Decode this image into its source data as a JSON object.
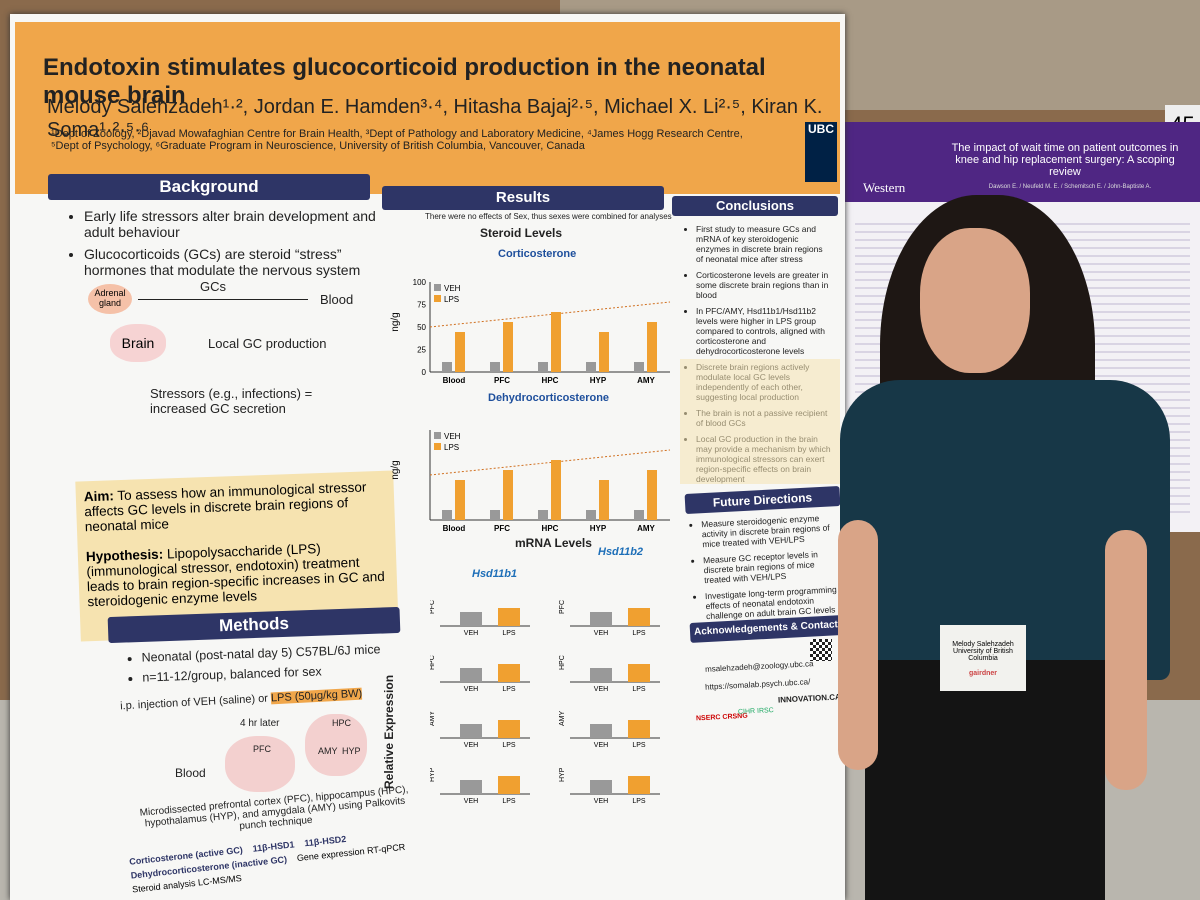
{
  "poster": {
    "header": {
      "title": "Endotoxin stimulates glucocorticoid production in the neonatal mouse brain",
      "authors": "Melody Salehzadeh¹·², Jordan E. Hamden³·⁴, Hitasha Bajaj²·⁵, Michael X. Li²·⁵, Kiran K. Soma¹·²·⁵·⁶",
      "affiliations": "¹Dept of Zoology, ²Djavad Mowafaghian Centre for Brain Health, ³Dept of Pathology and Laboratory Medicine, ⁴James Hogg Research Centre, ⁵Dept of Psychology, ⁶Graduate Program in Neuroscience, University of British Columbia, Vancouver, Canada",
      "logo": "UBC"
    },
    "background": {
      "heading": "Background",
      "items": [
        "Early life stressors alter brain development and adult behaviour",
        "Glucocorticoids (GCs) are steroid “stress” hormones that modulate the nervous system"
      ],
      "diagram": {
        "adrenal": "Adrenal gland",
        "gcs": "GCs",
        "blood": "Blood",
        "brain": "Brain",
        "local": "Local GC production",
        "stressors": "Stressors (e.g., infections) = increased GC secretion"
      }
    },
    "aim": {
      "label": "Aim:",
      "text": "To assess how an immunological stressor affects GC levels in discrete brain regions of neonatal mice"
    },
    "hypothesis": {
      "label": "Hypothesis:",
      "text": "Lipopolysaccharide (LPS) (immunological stressor, endotoxin) treatment leads to brain region-specific increases in GC and steroidogenic enzyme levels"
    },
    "methods": {
      "heading": "Methods",
      "items": [
        "Neonatal (post-natal day 5) C57BL/6J mice",
        "n=11-12/group, balanced for sex"
      ],
      "injection": "i.p. injection of VEH (saline)",
      "or": "or",
      "lps": "LPS (50μg/kg BW)",
      "later": "4 hr later",
      "regions": [
        "PFC",
        "HPC",
        "AMY",
        "HYP"
      ],
      "dissection": "Microdissected prefrontal cortex (PFC), hippocampus (HPC), hypothalamus (HYP), and amygdala (AMY) using Palkovits punch technique",
      "pathway": [
        "Corticosterone (active GC)",
        "11β-HSD1",
        "11β-HSD2",
        "Dehydrocorticosterone (inactive GC)",
        "Gene expression RT-qPCR",
        "Steroid analysis LC-MS/MS"
      ]
    },
    "results": {
      "heading": "Results",
      "note": "There were no effects of Sex, thus sexes were combined for analyses",
      "steroid_heading": "Steroid Levels",
      "cort": "Corticosterone",
      "dhc": "Dehydrocorticosterone",
      "yunit": "ng/g",
      "ticks": [
        100,
        75,
        50,
        25,
        0
      ],
      "legend": [
        "VEH",
        "LPS"
      ],
      "categories": [
        "Blood",
        "PFC",
        "HPC",
        "HYP",
        "AMY"
      ],
      "mrna_heading": "mRNA Levels",
      "gene1": "Hsd11b1",
      "gene2": "Hsd11b2",
      "rel": "Relative Expression"
    },
    "conclusions": {
      "heading": "Conclusions",
      "items": [
        "First study to measure GCs and mRNA of key steroidogenic enzymes in discrete brain regions of neonatal mice after stress",
        "Corticosterone levels are greater in some discrete brain regions than in blood",
        "In PFC/AMY, Hsd11b1/Hsd11b2 levels were higher in LPS group compared to controls, aligned with corticosterone and dehydrocorticosterone levels",
        "Discrete brain regions actively modulate local GC levels independently of each other, suggesting local production",
        "The brain is not a passive recipient of blood GCs",
        "Local GC production in the brain may provide a mechanism by which immunological stressors can exert region-specific effects on brain development"
      ]
    },
    "future": {
      "heading": "Future Directions",
      "items": [
        "Measure steroidogenic enzyme activity in discrete brain regions of mice treated with VEH/LPS",
        "Measure GC receptor levels in discrete brain regions of mice treated with VEH/LPS",
        "Investigate long-term programming effects of neonatal endotoxin challenge on adult brain GC levels and behaviour"
      ]
    },
    "ack": {
      "heading": "Acknowledgements & Contact",
      "email": "msalehzadeh@zoology.ubc.ca",
      "url": "https://somalab.psych.ubc.ca/",
      "logos": [
        "NSERC CRSNG",
        "CIHR IRSC",
        "INNOVATION.CA"
      ]
    }
  },
  "second_poster": {
    "logo": "Western",
    "title": "The impact of wait time on patient outcomes in knee and hip replacement surgery: A scoping review",
    "authors": "Dawson E. / Neufeld M. E. / Schemitsch E. / John-Baptiste A."
  },
  "badge": {
    "name": "Melody Salehzadeh",
    "school": "University of British Columbia",
    "sponsor": "gairdner"
  },
  "board_number": "45"
}
